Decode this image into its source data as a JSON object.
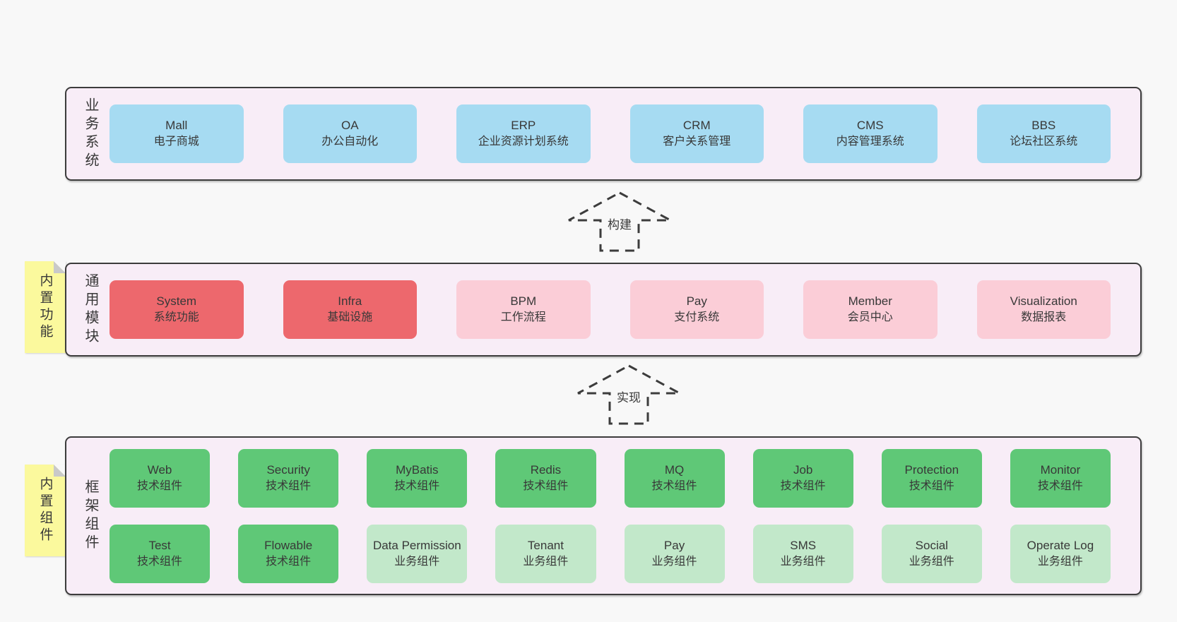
{
  "colors": {
    "page_bg": "#f8f8f8",
    "panel": "#f8edf7",
    "line": "#3c3c3c",
    "text": "#383838",
    "blue": "#a6dbf2",
    "red": "#ed686d",
    "pink": "#fbcdd7",
    "green": "#5fc877",
    "green_light": "#c2e8ca",
    "yellow": "#fbf99d",
    "fold": "#c9c9c9"
  },
  "arrows": [
    {
      "label": "构建"
    },
    {
      "label": "实现"
    }
  ],
  "layers": [
    {
      "id": "business",
      "side_label": "业务系统",
      "boxes": [
        {
          "title": "Mall",
          "subtitle": "电子商城",
          "variant": "blue"
        },
        {
          "title": "OA",
          "subtitle": "办公自动化",
          "variant": "blue"
        },
        {
          "title": "ERP",
          "subtitle": "企业资源计划系统",
          "variant": "blue"
        },
        {
          "title": "CRM",
          "subtitle": "客户关系管理",
          "variant": "blue"
        },
        {
          "title": "CMS",
          "subtitle": "内容管理系统",
          "variant": "blue"
        },
        {
          "title": "BBS",
          "subtitle": "论坛社区系统",
          "variant": "blue"
        }
      ]
    },
    {
      "id": "modules",
      "side_label": "通用模块",
      "sticky": "内置功能",
      "boxes": [
        {
          "title": "System",
          "subtitle": "系统功能",
          "variant": "red"
        },
        {
          "title": "Infra",
          "subtitle": "基础设施",
          "variant": "red"
        },
        {
          "title": "BPM",
          "subtitle": "工作流程",
          "variant": "pink"
        },
        {
          "title": "Pay",
          "subtitle": "支付系统",
          "variant": "pink"
        },
        {
          "title": "Member",
          "subtitle": "会员中心",
          "variant": "pink"
        },
        {
          "title": "Visualization",
          "subtitle": "数据报表",
          "variant": "pink"
        }
      ]
    },
    {
      "id": "framework",
      "side_label": "框架组件",
      "sticky": "内置组件",
      "boxes": [
        {
          "title": "Web",
          "subtitle": "技术组件",
          "variant": "green"
        },
        {
          "title": "Security",
          "subtitle": "技术组件",
          "variant": "green"
        },
        {
          "title": "MyBatis",
          "subtitle": "技术组件",
          "variant": "green"
        },
        {
          "title": "Redis",
          "subtitle": "技术组件",
          "variant": "green"
        },
        {
          "title": "MQ",
          "subtitle": "技术组件",
          "variant": "green"
        },
        {
          "title": "Job",
          "subtitle": "技术组件",
          "variant": "green"
        },
        {
          "title": "Protection",
          "subtitle": "技术组件",
          "variant": "green"
        },
        {
          "title": "Monitor",
          "subtitle": "技术组件",
          "variant": "green"
        },
        {
          "title": "Test",
          "subtitle": "技术组件",
          "variant": "green"
        },
        {
          "title": "Flowable",
          "subtitle": "技术组件",
          "variant": "green"
        },
        {
          "title": "Data Permission",
          "subtitle": "业务组件",
          "variant": "lightgreen"
        },
        {
          "title": "Tenant",
          "subtitle": "业务组件",
          "variant": "lightgreen"
        },
        {
          "title": "Pay",
          "subtitle": "业务组件",
          "variant": "lightgreen"
        },
        {
          "title": "SMS",
          "subtitle": "业务组件",
          "variant": "lightgreen"
        },
        {
          "title": "Social",
          "subtitle": "业务组件",
          "variant": "lightgreen"
        },
        {
          "title": "Operate Log",
          "subtitle": "业务组件",
          "variant": "lightgreen"
        }
      ]
    }
  ]
}
